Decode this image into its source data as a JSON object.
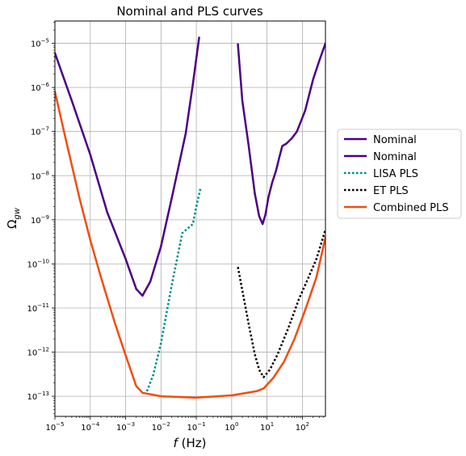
{
  "chart_data": {
    "type": "line",
    "title": "Nominal and PLS curves",
    "xlabel": "f (Hz)",
    "ylabel": "Ω_gw",
    "xscale": "log",
    "yscale": "log",
    "xlim": [
      1e-05,
      450
    ],
    "ylim": [
      3.5e-14,
      3.2e-05
    ],
    "grid": true,
    "legend_position": "outside-right",
    "x_ticks": [
      {
        "value": 1e-05,
        "base": "10",
        "exp": "−5"
      },
      {
        "value": 0.0001,
        "base": "10",
        "exp": "−4"
      },
      {
        "value": 0.001,
        "base": "10",
        "exp": "−3"
      },
      {
        "value": 0.01,
        "base": "10",
        "exp": "−2"
      },
      {
        "value": 0.1,
        "base": "10",
        "exp": "−1"
      },
      {
        "value": 1,
        "base": "10",
        "exp": "0"
      },
      {
        "value": 10,
        "base": "10",
        "exp": "1"
      },
      {
        "value": 100,
        "base": "10",
        "exp": "2"
      }
    ],
    "y_ticks": [
      {
        "value": 1e-13,
        "base": "10",
        "exp": "−13"
      },
      {
        "value": 1e-12,
        "base": "10",
        "exp": "−12"
      },
      {
        "value": 1e-11,
        "base": "10",
        "exp": "−11"
      },
      {
        "value": 1e-10,
        "base": "10",
        "exp": "−10"
      },
      {
        "value": 1e-09,
        "base": "10",
        "exp": "−9"
      },
      {
        "value": 1e-08,
        "base": "10",
        "exp": "−8"
      },
      {
        "value": 1e-07,
        "base": "10",
        "exp": "−7"
      },
      {
        "value": 1e-06,
        "base": "10",
        "exp": "−6"
      },
      {
        "value": 1e-05,
        "base": "10",
        "exp": "−5"
      }
    ],
    "series": [
      {
        "name": "Nominal",
        "color": "#4b0082",
        "style": "solid",
        "points": [
          [
            1e-05,
            6e-06
          ],
          [
            3e-05,
            5e-07
          ],
          [
            0.0001,
            3e-08
          ],
          [
            0.0003,
            1.5e-09
          ],
          [
            0.001,
            1.3e-10
          ],
          [
            0.002,
            2.7e-11
          ],
          [
            0.003,
            1.9e-11
          ],
          [
            0.005,
            4e-11
          ],
          [
            0.01,
            2.5e-10
          ],
          [
            0.02,
            3e-09
          ],
          [
            0.05,
            9e-08
          ],
          [
            0.08,
            1.2e-06
          ],
          [
            0.12,
            1.35e-05
          ]
        ]
      },
      {
        "name": "Nominal",
        "color": "#4b0082",
        "style": "solid",
        "points": [
          [
            1.5,
            9.5e-06
          ],
          [
            2,
            5e-07
          ],
          [
            3,
            5e-08
          ],
          [
            4.5,
            4e-09
          ],
          [
            6,
            1.2e-09
          ],
          [
            7.5,
            8e-10
          ],
          [
            9,
            1.3e-09
          ],
          [
            11,
            3.3e-09
          ],
          [
            14,
            7e-09
          ],
          [
            18,
            1.3e-08
          ],
          [
            22,
            2.5e-08
          ],
          [
            27,
            4.7e-08
          ],
          [
            35,
            5.3e-08
          ],
          [
            50,
            7e-08
          ],
          [
            70,
            1e-07
          ],
          [
            120,
            3e-07
          ],
          [
            200,
            1.5e-06
          ],
          [
            300,
            4e-06
          ],
          [
            450,
            1e-05
          ]
        ]
      },
      {
        "name": "LISA PLS",
        "color": "#008b8b",
        "style": "dotted",
        "points": [
          [
            0.004,
            1.3e-13
          ],
          [
            0.006,
            3e-13
          ],
          [
            0.01,
            1.6e-12
          ],
          [
            0.02,
            3.2e-11
          ],
          [
            0.04,
            5e-10
          ],
          [
            0.08,
            8e-10
          ],
          [
            0.1,
            2e-09
          ],
          [
            0.13,
            5e-09
          ]
        ]
      },
      {
        "name": "ET PLS",
        "color": "#000000",
        "style": "dotted",
        "points": [
          [
            1.5,
            8.5e-11
          ],
          [
            2,
            2.5e-11
          ],
          [
            3,
            4.5e-12
          ],
          [
            4.5,
            9e-13
          ],
          [
            6,
            4e-13
          ],
          [
            8,
            2.7e-13
          ],
          [
            12,
            4e-13
          ],
          [
            20,
            9e-13
          ],
          [
            40,
            3.5e-12
          ],
          [
            80,
            1.6e-11
          ],
          [
            150,
            5e-11
          ],
          [
            250,
            1.3e-10
          ],
          [
            450,
            6e-10
          ]
        ]
      },
      {
        "name": "Combined PLS",
        "color": "#f24d0f",
        "style": "solid",
        "points": [
          [
            1e-05,
            8e-07
          ],
          [
            2e-05,
            7e-08
          ],
          [
            5e-05,
            3e-09
          ],
          [
            0.0001,
            3.5e-10
          ],
          [
            0.0002,
            5e-11
          ],
          [
            0.0005,
            4.5e-12
          ],
          [
            0.001,
            8.5e-13
          ],
          [
            0.002,
            1.7e-13
          ],
          [
            0.003,
            1.2e-13
          ],
          [
            0.01,
            1e-13
          ],
          [
            0.1,
            9.3e-14
          ],
          [
            1,
            1.05e-13
          ],
          [
            5,
            1.3e-13
          ],
          [
            8,
            1.5e-13
          ],
          [
            15,
            2.6e-13
          ],
          [
            30,
            6e-13
          ],
          [
            60,
            2e-12
          ],
          [
            120,
            9e-12
          ],
          [
            250,
            5e-11
          ],
          [
            450,
            4e-10
          ]
        ]
      }
    ]
  }
}
